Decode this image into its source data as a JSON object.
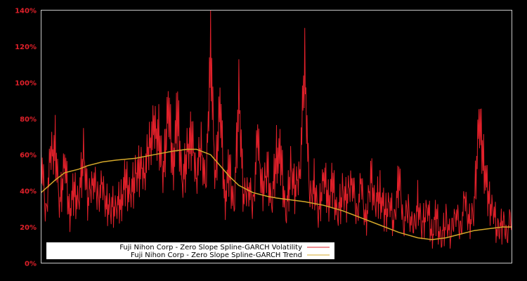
{
  "colors": {
    "background": "#000000",
    "axis": "#c8c8c8",
    "tick_label": "#e0202a",
    "volatility": "#e0202a",
    "trend": "#d4a82a",
    "legend_bg": "#ffffff"
  },
  "legend": {
    "volatility_label": "Fuji Nihon Corp - Zero Slope Spline-GARCH Volatility",
    "trend_label": "Fuji Nihon Corp - Zero Slope Spline-GARCH Trend"
  },
  "chart_data": {
    "type": "line",
    "title": "",
    "xlabel": "",
    "ylabel": "",
    "ylim": [
      0,
      140
    ],
    "yticks": [
      "0%",
      "20%",
      "40%",
      "60%",
      "80%",
      "100%",
      "120%",
      "140%"
    ],
    "x_range": [
      0,
      100
    ],
    "grid": false,
    "legend_position": "lower left",
    "series": [
      {
        "name": "Fuji Nihon Corp - Zero Slope Spline-GARCH Volatility",
        "x": [
          0,
          1,
          2,
          3,
          4,
          5,
          6,
          7,
          8,
          9,
          10,
          11,
          12,
          13,
          14,
          15,
          16,
          17,
          18,
          19,
          20,
          21,
          22,
          23,
          24,
          25,
          26,
          27,
          28,
          29,
          30,
          31,
          32,
          33,
          34,
          35,
          36,
          37,
          38,
          39,
          40,
          41,
          42,
          43,
          44,
          45,
          46,
          47,
          48,
          49,
          50,
          51,
          52,
          53,
          54,
          55,
          56,
          57,
          58,
          59,
          60,
          61,
          62,
          63,
          64,
          65,
          66,
          67,
          68,
          69,
          70,
          71,
          72,
          73,
          74,
          75,
          76,
          77,
          78,
          79,
          80,
          81,
          82,
          83,
          84,
          85,
          86,
          87,
          88,
          89,
          90,
          91,
          92,
          93,
          94,
          95,
          96,
          97,
          98,
          99,
          100
        ],
        "values": [
          70,
          30,
          68,
          74,
          35,
          65,
          32,
          45,
          40,
          70,
          38,
          55,
          42,
          48,
          36,
          35,
          34,
          40,
          52,
          44,
          55,
          60,
          58,
          75,
          85,
          80,
          55,
          100,
          60,
          95,
          50,
          70,
          80,
          55,
          75,
          45,
          139,
          50,
          102,
          40,
          60,
          35,
          108,
          40,
          50,
          35,
          80,
          45,
          60,
          35,
          70,
          65,
          30,
          60,
          45,
          60,
          127,
          40,
          50,
          30,
          55,
          40,
          50,
          30,
          45,
          40,
          55,
          30,
          50,
          25,
          55,
          35,
          45,
          30,
          40,
          25,
          55,
          25,
          35,
          20,
          38,
          22,
          35,
          18,
          30,
          15,
          28,
          15,
          35,
          20,
          40,
          25,
          35,
          90,
          65,
          40,
          35,
          20,
          25,
          20,
          30
        ]
      },
      {
        "name": "Fuji Nihon Corp - Zero Slope Spline-GARCH Trend",
        "x": [
          0,
          3,
          5,
          8,
          10,
          13,
          16,
          20,
          24,
          28,
          31,
          33,
          36,
          38,
          40,
          42,
          45,
          48,
          50,
          53,
          56,
          60,
          64,
          68,
          72,
          76,
          80,
          83,
          86,
          89,
          92,
          95,
          98,
          100
        ],
        "values": [
          39,
          46,
          50,
          52,
          54,
          56,
          57,
          58,
          60,
          62,
          63,
          63,
          60,
          54,
          48,
          43,
          39,
          37,
          36,
          35,
          34,
          32,
          29,
          25,
          21,
          17,
          14,
          13,
          14,
          16,
          18,
          19,
          20,
          20
        ]
      }
    ]
  }
}
